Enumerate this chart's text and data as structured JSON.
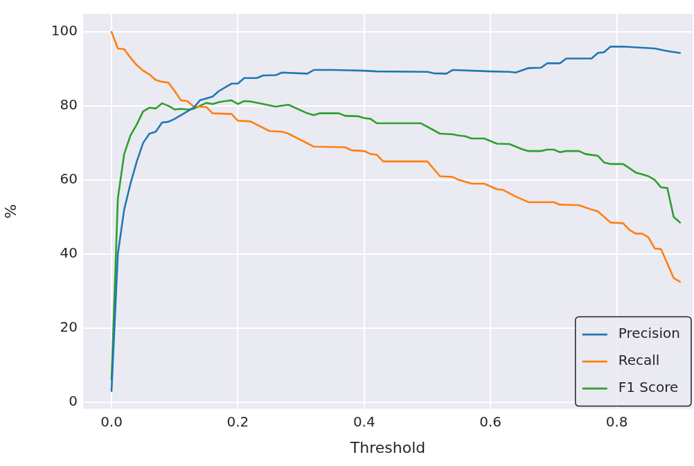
{
  "chart_data": {
    "type": "line",
    "xlabel": "Threshold",
    "ylabel": "%",
    "xlim": [
      -0.045,
      0.92
    ],
    "ylim": [
      -1.85,
      104.85
    ],
    "xticks": [
      {
        "value": 0,
        "label": "0.0"
      },
      {
        "value": 0.2,
        "label": "0.2"
      },
      {
        "value": 0.4,
        "label": "0.4"
      },
      {
        "value": 0.6,
        "label": "0.6"
      },
      {
        "value": 0.8,
        "label": "0.8"
      }
    ],
    "yticks": [
      0,
      20,
      40,
      60,
      80,
      100
    ],
    "grid": true,
    "legend": "bottom right",
    "marker": "none",
    "line_style": "solid",
    "series": [
      {
        "name": "Precision",
        "color": "#1f77b4",
        "x": [
          0,
          0.01,
          0.02,
          0.03,
          0.04,
          0.05,
          0.06,
          0.07,
          0.08,
          0.09,
          0.1,
          0.11,
          0.12,
          0.13,
          0.14,
          0.15,
          0.16,
          0.17,
          0.18,
          0.19,
          0.2,
          0.21,
          0.23,
          0.24,
          0.26,
          0.27,
          0.31,
          0.32,
          0.35,
          0.4,
          0.42,
          0.5,
          0.51,
          0.53,
          0.54,
          0.6,
          0.63,
          0.64,
          0.66,
          0.68,
          0.69,
          0.71,
          0.72,
          0.76,
          0.77,
          0.78,
          0.79,
          0.81,
          0.86,
          0.88,
          0.9
        ],
        "values": [
          3,
          40,
          52,
          59,
          65,
          70,
          72.5,
          73,
          75.5,
          75.7,
          76.5,
          77.5,
          78.5,
          79.5,
          81.5,
          82,
          82.5,
          84,
          85,
          86,
          86,
          87.5,
          87.5,
          88.2,
          88.3,
          89,
          88.7,
          89.7,
          89.7,
          89.5,
          89.3,
          89.2,
          88.8,
          88.7,
          89.7,
          89.3,
          89.2,
          89,
          90.2,
          90.3,
          91.5,
          91.5,
          92.8,
          92.8,
          94.3,
          94.5,
          96,
          96,
          95.5,
          94.8,
          94.3
        ]
      },
      {
        "name": "Recall",
        "color": "#ff7f0e",
        "x": [
          0,
          0.01,
          0.02,
          0.03,
          0.04,
          0.05,
          0.06,
          0.07,
          0.08,
          0.09,
          0.1,
          0.11,
          0.12,
          0.13,
          0.15,
          0.16,
          0.19,
          0.2,
          0.22,
          0.25,
          0.27,
          0.28,
          0.32,
          0.37,
          0.38,
          0.4,
          0.41,
          0.42,
          0.43,
          0.5,
          0.52,
          0.54,
          0.55,
          0.57,
          0.59,
          0.61,
          0.62,
          0.64,
          0.66,
          0.7,
          0.71,
          0.74,
          0.76,
          0.77,
          0.78,
          0.79,
          0.81,
          0.82,
          0.83,
          0.84,
          0.85,
          0.86,
          0.87,
          0.89,
          0.9
        ],
        "values": [
          100,
          95.5,
          95.3,
          93,
          91,
          89.5,
          88.5,
          87,
          86.5,
          86.3,
          84,
          81.5,
          81.3,
          79.8,
          79.7,
          78,
          77.8,
          76,
          75.8,
          73.2,
          73,
          72.5,
          69,
          68.8,
          68,
          67.8,
          67,
          66.8,
          65,
          65,
          61,
          60.8,
          60,
          59,
          59,
          57.5,
          57.3,
          55.5,
          54,
          54,
          53.3,
          53.2,
          52,
          51.5,
          50,
          48.5,
          48.3,
          46.5,
          45.5,
          45.5,
          44.5,
          41.5,
          41.3,
          33.5,
          32.5
        ]
      },
      {
        "name": "F1 Score",
        "color": "#2ca02c",
        "x": [
          0,
          0.01,
          0.02,
          0.03,
          0.04,
          0.05,
          0.06,
          0.07,
          0.08,
          0.09,
          0.1,
          0.11,
          0.12,
          0.13,
          0.14,
          0.15,
          0.16,
          0.17,
          0.18,
          0.19,
          0.2,
          0.21,
          0.22,
          0.24,
          0.26,
          0.28,
          0.31,
          0.32,
          0.33,
          0.36,
          0.37,
          0.39,
          0.4,
          0.41,
          0.42,
          0.49,
          0.52,
          0.54,
          0.55,
          0.56,
          0.57,
          0.59,
          0.61,
          0.63,
          0.65,
          0.66,
          0.68,
          0.69,
          0.7,
          0.71,
          0.72,
          0.74,
          0.75,
          0.77,
          0.78,
          0.79,
          0.81,
          0.83,
          0.84,
          0.85,
          0.86,
          0.87,
          0.88,
          0.89,
          0.9
        ],
        "values": [
          6,
          55,
          67,
          72,
          75,
          78.5,
          79.5,
          79.3,
          80.7,
          80,
          79,
          79.2,
          79,
          79.2,
          80,
          80.8,
          80.5,
          81,
          81.3,
          81.5,
          80.5,
          81.3,
          81.2,
          80.5,
          79.8,
          80.3,
          78,
          77.5,
          78,
          78,
          77.3,
          77.2,
          76.7,
          76.5,
          75.3,
          75.3,
          72.5,
          72.3,
          72,
          71.8,
          71.2,
          71.2,
          69.8,
          69.7,
          68.3,
          67.8,
          67.8,
          68.2,
          68.2,
          67.5,
          67.8,
          67.8,
          67,
          66.5,
          64.7,
          64.3,
          64.3,
          62,
          61.5,
          61,
          60,
          58,
          57.8,
          50,
          48.5
        ]
      }
    ]
  }
}
